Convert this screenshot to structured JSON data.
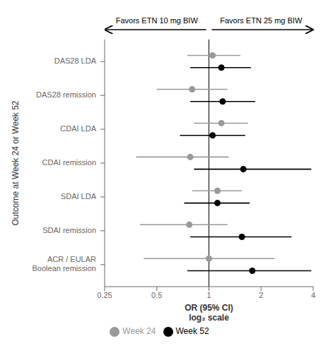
{
  "chart_data": {
    "type": "forest",
    "categories": [
      "DAS28 LDA",
      "DAS28 remission",
      "CDAI LDA",
      "CDAI remission",
      "SDAI LDA",
      "SDAI remission",
      "ACR / EULAR\nBoolean remission"
    ],
    "series": [
      {
        "name": "Week 24",
        "color": "#999999",
        "values": [
          1.05,
          0.8,
          1.18,
          0.78,
          1.12,
          0.77,
          1.0
        ],
        "ci_lo": [
          0.75,
          0.5,
          0.82,
          0.38,
          0.8,
          0.4,
          0.42
        ],
        "ci_hi": [
          1.52,
          1.28,
          1.68,
          1.3,
          1.55,
          1.28,
          2.4
        ]
      },
      {
        "name": "Week 52",
        "color": "#000000",
        "values": [
          1.18,
          1.2,
          1.05,
          1.58,
          1.12,
          1.55,
          1.78
        ],
        "ci_lo": [
          0.78,
          0.78,
          0.68,
          0.82,
          0.72,
          0.78,
          0.75
        ],
        "ci_hi": [
          1.75,
          1.85,
          1.62,
          3.9,
          1.72,
          3.0,
          3.9
        ]
      }
    ],
    "xlim": [
      0.25,
      4
    ],
    "xticks": [
      0.25,
      0.5,
      1,
      2,
      4
    ],
    "log": "x",
    "xlabel": "OR (95% CI)\nlog₂ scale",
    "ylabel": "Outcome at Week 24 or Week 52",
    "reference_line": 1,
    "annotations": [
      {
        "text": "Favors ETN 10 mg BIW",
        "arrow": "left"
      },
      {
        "text": "Favors ETN 25 mg BIW",
        "arrow": "right"
      }
    ],
    "legend": "bottom",
    "grid": false
  }
}
